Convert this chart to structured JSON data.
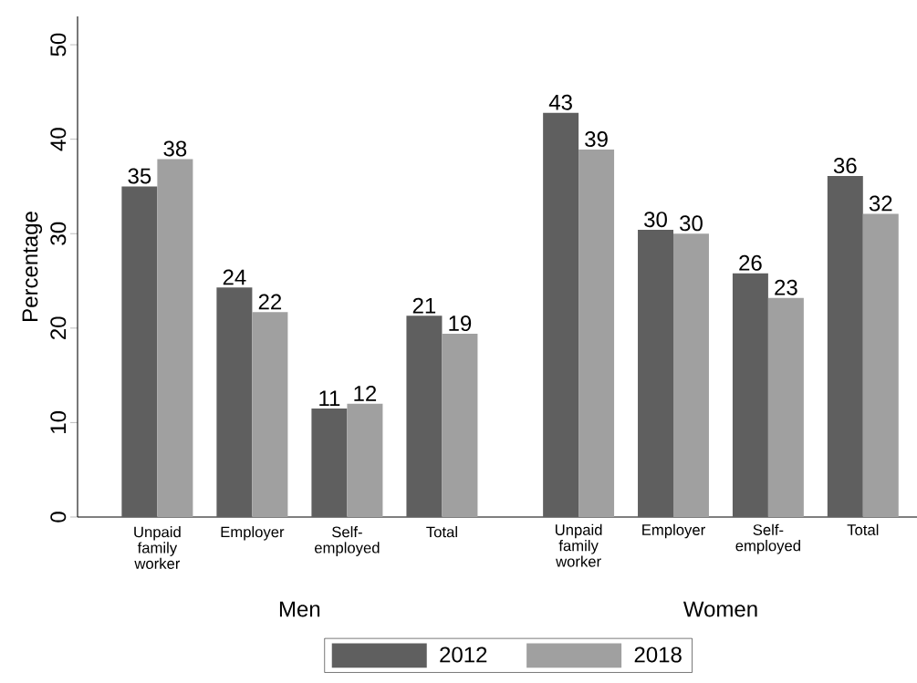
{
  "chart_data": [
    {
      "type": "bar",
      "categories": [
        "Unpaid family worker",
        "Employer",
        "Self-employed",
        "Total"
      ],
      "xlabel": "Men",
      "ylabel": "Percentage",
      "ylim": [
        0,
        53
      ],
      "yticks": [
        0,
        10,
        20,
        30,
        40,
        50
      ],
      "legend": "bottom",
      "series": [
        {
          "name": "2012",
          "color": "#5f5f5f",
          "values": [
            35.0,
            24.3,
            11.5,
            21.3
          ],
          "value_labels": [
            "35",
            "24",
            "11",
            "21"
          ]
        },
        {
          "name": "2018",
          "color": "#a0a0a0",
          "values": [
            37.9,
            21.7,
            12.0,
            19.4
          ],
          "value_labels": [
            "38",
            "22",
            "12",
            "19"
          ]
        }
      ]
    },
    {
      "type": "bar",
      "categories": [
        "Unpaid family worker",
        "Employer",
        "Self-employed",
        "Total"
      ],
      "xlabel": "Women",
      "tick_labels": "x",
      "series": [
        {
          "color": "#5f5f5f",
          "values": [
            42.8,
            30.4,
            25.8,
            36.1
          ],
          "value_labels": [
            "43",
            "30",
            "26",
            "36"
          ]
        },
        {
          "color": "#a0a0a0",
          "values": [
            38.9,
            30.0,
            23.2,
            32.1
          ],
          "value_labels": [
            "39",
            "30",
            "23",
            "32"
          ]
        }
      ]
    }
  ]
}
